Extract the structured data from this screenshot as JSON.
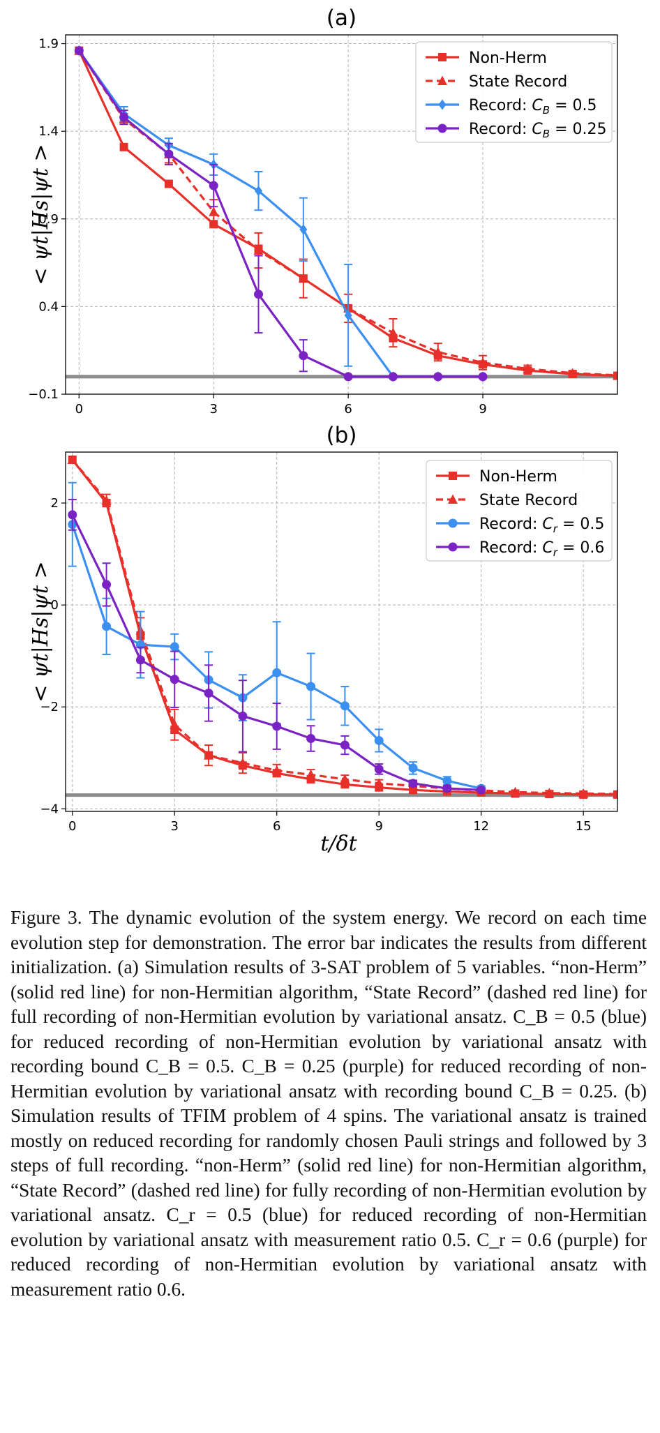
{
  "chart_data": [
    {
      "id": "a",
      "type": "line",
      "panel_label": "(a)",
      "xlabel": "",
      "ylabel": "< ψt|Hs|ψt >",
      "xlim": [
        -0.3,
        12.0
      ],
      "ylim": [
        -0.1,
        1.95
      ],
      "xticks": [
        0,
        3,
        6,
        9
      ],
      "xtick_labels": [
        "0",
        "3",
        "6",
        "9"
      ],
      "yticks": [
        -0.1,
        0.4,
        0.9,
        1.4,
        1.9
      ],
      "ytick_labels": [
        "−0.1",
        "0.4",
        "0.9",
        "1.4",
        "1.9"
      ],
      "grid": true,
      "legend_position": "top-right",
      "ground_state_line": 0.0,
      "ground_state_color": "#8c8c8c",
      "series": [
        {
          "name": "Non-Herm",
          "color": "#e8302a",
          "marker": "square",
          "dash": false,
          "has_err": false,
          "x": [
            0,
            1,
            2,
            3,
            4,
            5,
            6,
            7,
            8,
            9,
            10,
            11,
            12
          ],
          "y": [
            1.86,
            1.31,
            1.1,
            0.87,
            0.73,
            0.56,
            0.39,
            0.22,
            0.12,
            0.07,
            0.035,
            0.015,
            0.005
          ]
        },
        {
          "name": "State Record",
          "color": "#e8302a",
          "marker": "triangle",
          "dash": true,
          "has_err": true,
          "x": [
            0,
            1,
            2,
            3,
            4,
            5,
            6,
            7,
            8,
            9,
            10,
            11,
            12
          ],
          "y": [
            1.86,
            1.47,
            1.27,
            0.94,
            0.72,
            0.56,
            0.39,
            0.25,
            0.14,
            0.08,
            0.045,
            0.02,
            0.008
          ],
          "err": [
            0,
            0.03,
            0.05,
            0.07,
            0.1,
            0.11,
            0.08,
            0.08,
            0.05,
            0.04,
            0.02,
            0.01,
            0.005
          ]
        },
        {
          "name": "Record: C_B = 0.5",
          "color": "#3a8ff0",
          "marker": "diamond",
          "dash": false,
          "has_err": true,
          "x": [
            0,
            1,
            2,
            3,
            4,
            5,
            6,
            7,
            8,
            9
          ],
          "y": [
            1.86,
            1.5,
            1.32,
            1.21,
            1.06,
            0.84,
            0.35,
            0.0,
            0.0,
            0.0
          ],
          "err": [
            0,
            0.04,
            0.04,
            0.06,
            0.11,
            0.18,
            0.29,
            0,
            0,
            0
          ]
        },
        {
          "name": "Record: C_B = 0.25",
          "color": "#7b22c4",
          "marker": "circle",
          "dash": false,
          "has_err": true,
          "x": [
            0,
            1,
            2,
            3,
            4,
            5,
            6,
            7,
            8,
            9
          ],
          "y": [
            1.86,
            1.48,
            1.27,
            1.09,
            0.47,
            0.12,
            0.0,
            0.0,
            0.0,
            0.0
          ],
          "err": [
            0,
            0.04,
            0.06,
            0.12,
            0.22,
            0.09,
            0,
            0,
            0,
            0
          ]
        }
      ]
    },
    {
      "id": "b",
      "type": "line",
      "panel_label": "(b)",
      "xlabel": "t/δt",
      "ylabel": "< ψt|Hs|ψt >",
      "xlim": [
        -0.2,
        16.0
      ],
      "ylim": [
        -4.05,
        3.0
      ],
      "xticks": [
        0,
        3,
        6,
        9,
        12,
        15
      ],
      "xtick_labels": [
        "0",
        "3",
        "6",
        "9",
        "12",
        "15"
      ],
      "yticks": [
        -4,
        -2,
        0,
        2
      ],
      "ytick_labels": [
        "−4",
        "−2",
        "0",
        "2"
      ],
      "grid": true,
      "legend_position": "top-right",
      "ground_state_line": -3.73,
      "ground_state_color": "#8c8c8c",
      "series": [
        {
          "name": "Non-Herm",
          "color": "#e8302a",
          "marker": "square",
          "dash": false,
          "has_err": false,
          "x": [
            0,
            1,
            2,
            3,
            4,
            5,
            6,
            7,
            8,
            9,
            10,
            11,
            12,
            13,
            14,
            15,
            16
          ],
          "y": [
            2.85,
            2.0,
            -0.6,
            -2.45,
            -2.95,
            -3.15,
            -3.3,
            -3.42,
            -3.52,
            -3.58,
            -3.63,
            -3.66,
            -3.68,
            -3.7,
            -3.71,
            -3.72,
            -3.72
          ]
        },
        {
          "name": "State Record",
          "color": "#e8302a",
          "marker": "triangle",
          "dash": true,
          "has_err": true,
          "x": [
            0,
            1,
            2,
            3,
            4,
            5,
            6,
            7,
            8,
            9,
            10,
            11,
            12,
            13,
            14,
            15,
            16
          ],
          "y": [
            2.85,
            2.05,
            -0.5,
            -2.35,
            -2.95,
            -3.1,
            -3.25,
            -3.33,
            -3.42,
            -3.5,
            -3.55,
            -3.6,
            -3.64,
            -3.67,
            -3.69,
            -3.7,
            -3.71
          ],
          "err": [
            0,
            0.12,
            0.25,
            0.3,
            0.2,
            0.2,
            0.12,
            0.1,
            0.08,
            0.07,
            0.06,
            0.05,
            0.04,
            0.03,
            0.02,
            0.02,
            0.01
          ]
        },
        {
          "name": "Record: C_r = 0.5",
          "color": "#3a8ff0",
          "marker": "circle",
          "dash": false,
          "has_err": true,
          "x": [
            0,
            1,
            2,
            3,
            4,
            5,
            6,
            7,
            8,
            9,
            10,
            11,
            12
          ],
          "y": [
            1.58,
            -0.42,
            -0.78,
            -0.82,
            -1.47,
            -1.82,
            -1.33,
            -1.6,
            -1.98,
            -2.66,
            -3.2,
            -3.45,
            -3.6
          ],
          "err": [
            0.82,
            0.55,
            0.65,
            0.25,
            0.55,
            0.45,
            1.0,
            0.65,
            0.38,
            0.22,
            0.12,
            0.08,
            0.05
          ]
        },
        {
          "name": "Record: C_r = 0.6",
          "color": "#7b22c4",
          "marker": "circle",
          "dash": false,
          "has_err": true,
          "x": [
            0,
            1,
            2,
            3,
            4,
            5,
            6,
            7,
            8,
            9,
            10,
            11,
            12
          ],
          "y": [
            1.77,
            0.4,
            -1.08,
            -1.46,
            -1.73,
            -2.18,
            -2.38,
            -2.62,
            -2.75,
            -3.22,
            -3.5,
            -3.6,
            -3.63
          ],
          "err": [
            0.3,
            0.42,
            0.25,
            0.55,
            0.55,
            0.7,
            0.45,
            0.25,
            0.18,
            0.1,
            0.06,
            0.05,
            0.03
          ]
        }
      ]
    }
  ],
  "caption": "Figure 3.  The dynamic evolution of the system energy.  We record on each time evolution step for demonstration.  The error bar indicates the results from different initialization.  (a) Simulation results of 3-SAT problem of 5 variables.  “non-Herm” (solid red line) for non-Hermitian algorithm, “State Record” (dashed red line) for full recording of non-Hermitian evolution by variational ansatz. C_B = 0.5 (blue) for reduced recording of non-Hermitian evolution by variational ansatz with recording bound C_B = 0.5.  C_B = 0.25 (purple) for reduced recording of non-Hermitian evolution by variational ansatz with recording bound C_B = 0.25.  (b) Simulation results of TFIM problem of 4 spins.  The variational ansatz is trained mostly on reduced recording for randomly chosen Pauli strings and followed by 3 steps of full recording.  “non-Herm” (solid red line) for non-Hermitian algorithm, “State Record” (dashed red line) for fully recording of non-Hermitian evolution by variational ansatz. C_r = 0.5 (blue) for reduced recording of non-Hermitian evolution by variational ansatz with measurement ratio 0.5.  C_r = 0.6 (purple) for reduced recording of non-Hermitian evolution by variational ansatz with measurement ratio 0.6."
}
